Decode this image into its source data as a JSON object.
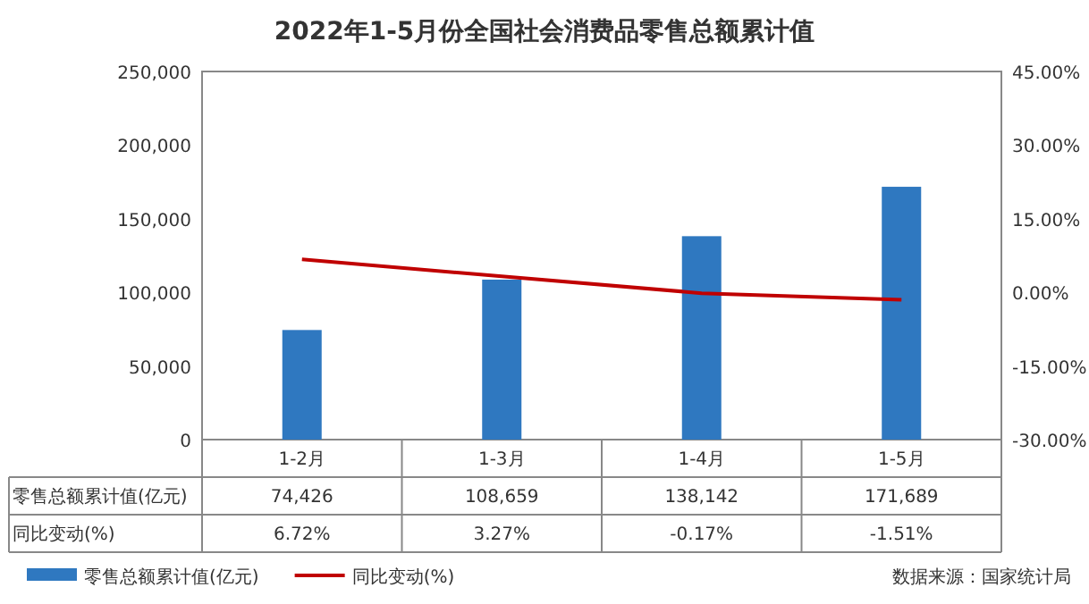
{
  "chart_data": {
    "type": "bar",
    "title": "2022年1-5月份全国社会消费品零售总额累计值",
    "categories": [
      "1-2月",
      "1-3月",
      "1-4月",
      "1-5月"
    ],
    "series": [
      {
        "name": "零售总额累计值(亿元)",
        "color": "#2f78c0",
        "values": [
          74426,
          108659,
          138142,
          171689
        ],
        "value_labels": [
          "74,426",
          "108,659",
          "138,142",
          "171,689"
        ]
      },
      {
        "name": "同比变动(%)",
        "type": "line",
        "axis": "y2",
        "color": "#c00000",
        "values": [
          6.72,
          3.27,
          -0.17,
          -1.51
        ],
        "value_labels": [
          "6.72%",
          "3.27%",
          "-0.17%",
          "-1.51%"
        ]
      }
    ],
    "ylim": [
      0,
      250000
    ],
    "yticks": [
      0,
      {
        "value": 50000,
        "label": "50,000"
      },
      {
        "value": 100000,
        "label": "100,000"
      },
      {
        "value": 150000,
        "label": "150,000"
      },
      {
        "value": 200000,
        "label": "200,000"
      },
      {
        "value": 250000,
        "label": "250,000"
      }
    ],
    "y2lim": [
      -30,
      45
    ],
    "y2ticks": [
      {
        "value": -30,
        "label": "-30.00%"
      },
      {
        "value": -15,
        "label": "-15.00%"
      },
      {
        "value": 0,
        "label": "0.00%"
      },
      {
        "value": 15,
        "label": "15.00%"
      },
      {
        "value": 30,
        "label": "30.00%"
      },
      {
        "value": 45,
        "label": "45.00%"
      }
    ],
    "legend": "bottom",
    "annotations": [
      "数据来源：国家统计局"
    ]
  }
}
